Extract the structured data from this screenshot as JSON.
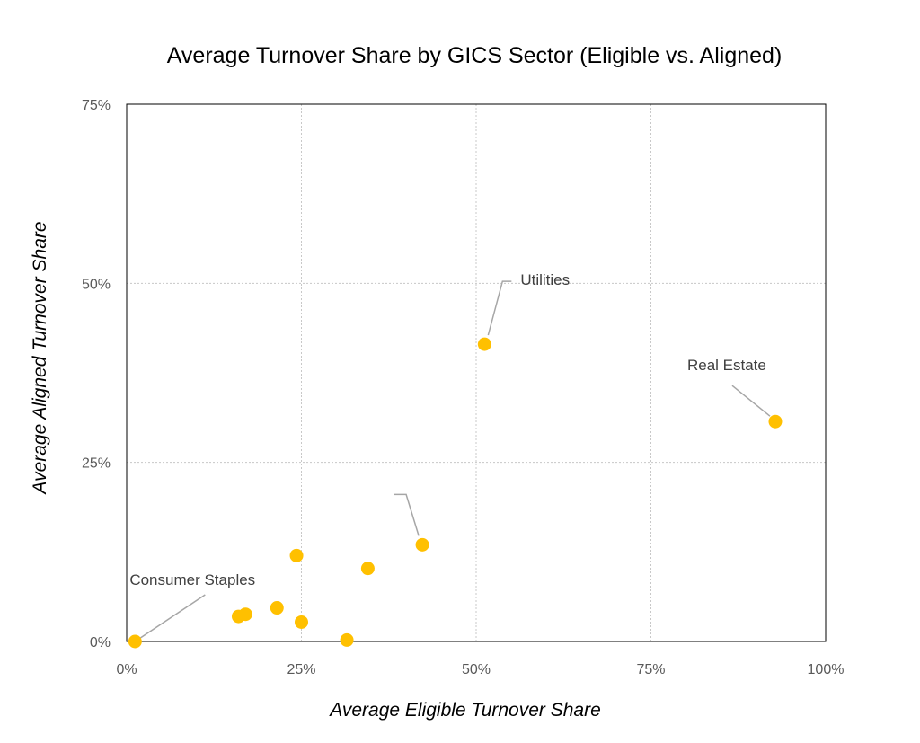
{
  "chart_data": {
    "type": "scatter",
    "title": "Average Turnover Share by GICS Sector (Eligible vs. Aligned)",
    "xlabel": "Average Eligible Turnover Share",
    "ylabel": "Average Aligned Turnover Share",
    "xlim": [
      0,
      1
    ],
    "ylim": [
      0,
      0.75
    ],
    "x_ticks": [
      0,
      0.25,
      0.5,
      0.75,
      1.0
    ],
    "x_tick_labels": [
      "0%",
      "25%",
      "50%",
      "75%",
      "100%"
    ],
    "y_ticks": [
      0,
      0.25,
      0.5,
      0.75
    ],
    "y_tick_labels": [
      "0%",
      "25%",
      "50%",
      "75%"
    ],
    "grid": true,
    "legend": "none",
    "marker_color": "#FFC000",
    "points": [
      {
        "x": 0.012,
        "y": 0.0,
        "label": "Consumer Staples"
      },
      {
        "x": 0.16,
        "y": 0.035,
        "label": ""
      },
      {
        "x": 0.17,
        "y": 0.038,
        "label": ""
      },
      {
        "x": 0.215,
        "y": 0.047,
        "label": ""
      },
      {
        "x": 0.243,
        "y": 0.12,
        "label": ""
      },
      {
        "x": 0.25,
        "y": 0.027,
        "label": ""
      },
      {
        "x": 0.315,
        "y": 0.002,
        "label": ""
      },
      {
        "x": 0.345,
        "y": 0.102,
        "label": ""
      },
      {
        "x": 0.423,
        "y": 0.135,
        "label": ""
      },
      {
        "x": 0.512,
        "y": 0.415,
        "label": "Utilities"
      },
      {
        "x": 0.928,
        "y": 0.307,
        "label": "Real Estate"
      }
    ]
  }
}
